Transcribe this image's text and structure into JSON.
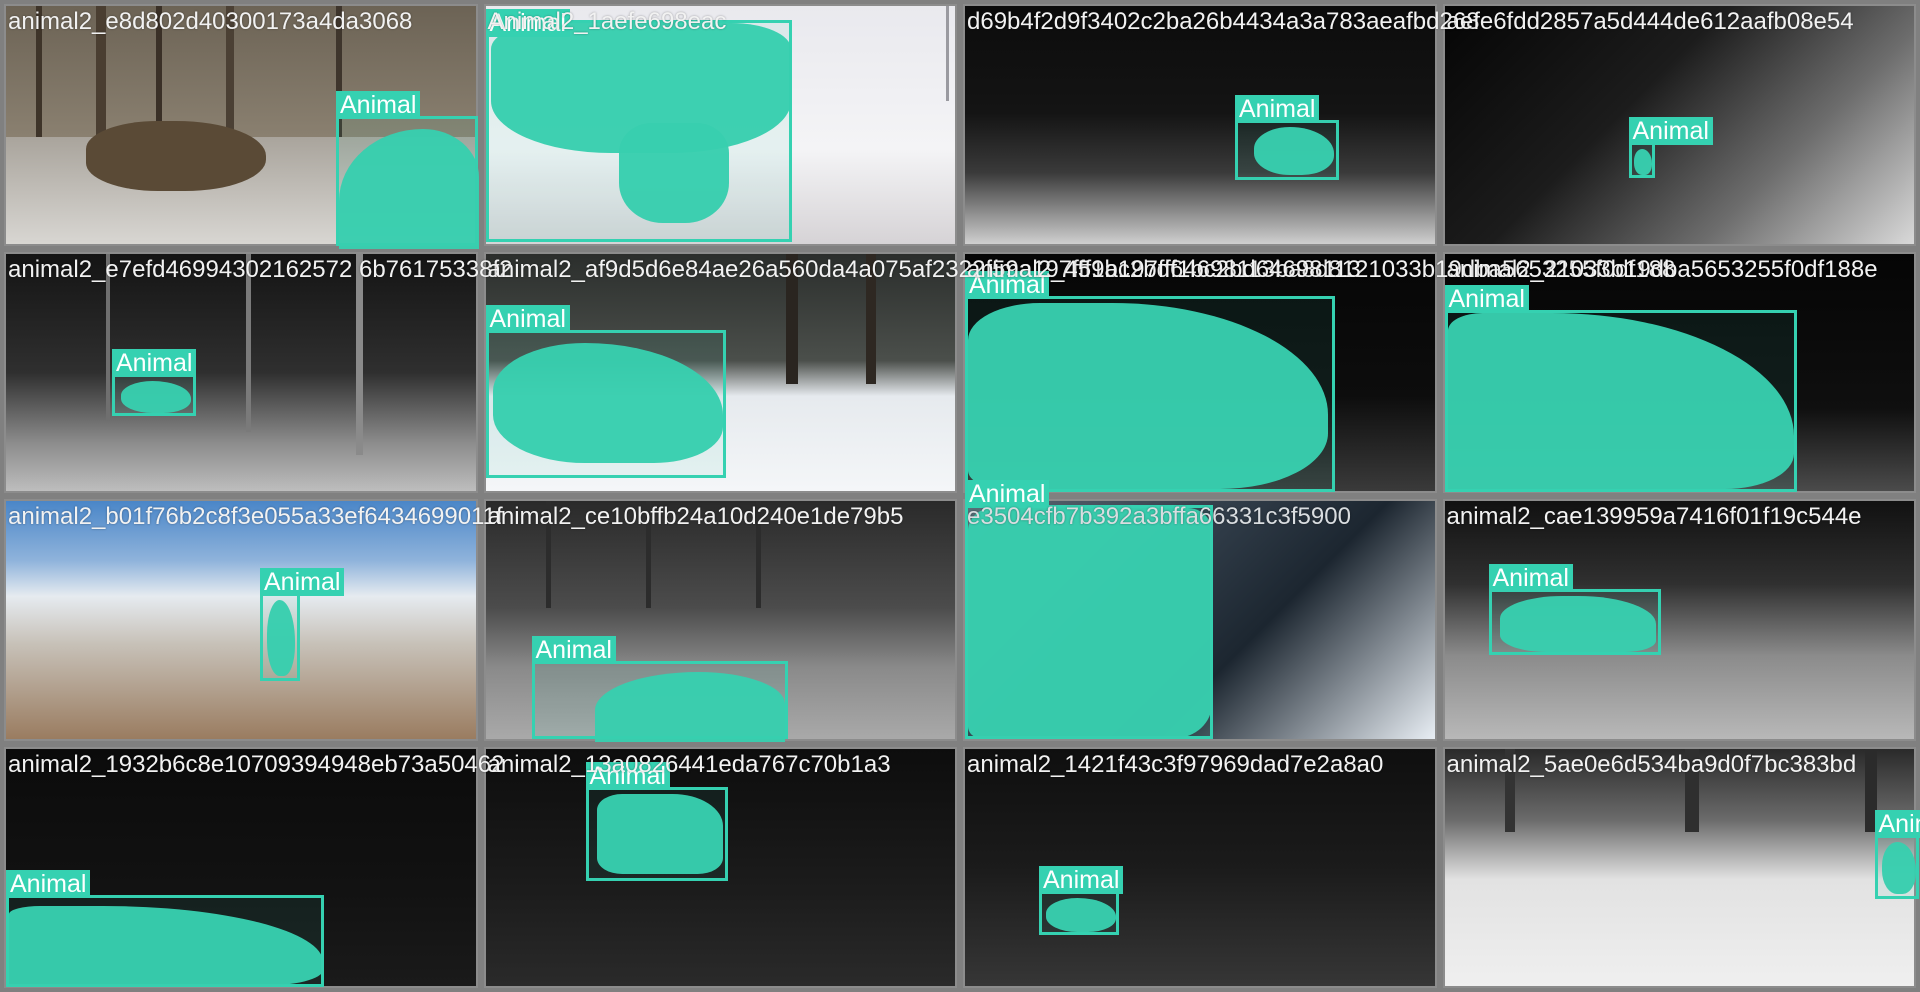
{
  "label": "Animal",
  "tiles": [
    {
      "title": "animal2_e8d802d40300173a4da3068"
    },
    {
      "title": "Animal2_1aefe698eac"
    },
    {
      "title": "d69b4f2d9f3402c2ba26b4434a3a783aeafbd268"
    },
    {
      "title": "aefe6fdd2857a5d444de612aafb08e54"
    },
    {
      "title": "animal2_e7efd46994302162572 6b76175338f2"
    },
    {
      "title": "animal2_af9d5d6e84ae26a560da4a075af2322f59a197fff1bc2bd64698113ba8d8121033b19dba5653255f0df188"
    },
    {
      "title": "animal2_459a197fff1bc2bd64698113"
    },
    {
      "title": "animal2_21033b19dba5653255f0df188e"
    },
    {
      "title": "animal2_b01f76b2c8f3e055a33ef6434699011f"
    },
    {
      "title": "animal2_ce10bffb24a10d240e1de79b5"
    },
    {
      "title": "e3504cfb7b392a3bffa66331c3f5900"
    },
    {
      "title": "animal2_cae139959a7416f01f19c544e"
    },
    {
      "title": "animal2_1932b6c8e10709394948eb73a50462"
    },
    {
      "title": "animal2_13a0826441eda767c70b1a3"
    },
    {
      "title": "animal2_1421f43c3f97969dad7e2a8a0"
    },
    {
      "title": "animal2_5ae0e6d534ba9d0f7bc383bd"
    }
  ]
}
